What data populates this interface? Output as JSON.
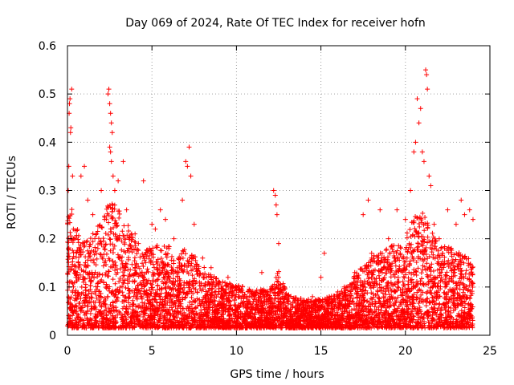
{
  "chart_data": {
    "type": "scatter",
    "title": "Day 069 of 2024, Rate Of TEC Index for receiver hofn",
    "xlabel": "GPS time / hours",
    "ylabel": "ROTI / TECUs",
    "xlim": [
      0,
      25
    ],
    "ylim": [
      0,
      0.6
    ],
    "x_ticks": [
      0,
      5,
      10,
      15,
      20,
      25
    ],
    "y_ticks": [
      0,
      0.1,
      0.2,
      0.3,
      0.4,
      0.5,
      0.6
    ],
    "x_tick_labels": [
      "0",
      "5",
      "10",
      "15",
      "20",
      "25"
    ],
    "y_tick_labels": [
      "0",
      "0.1",
      "0.2",
      "0.3",
      "0.4",
      "0.5",
      "0.6"
    ],
    "grid": true,
    "marker": "+",
    "color": "#ff0000",
    "series": [
      {
        "name": "hofn",
        "points": [
          [
            0.05,
            0.3
          ],
          [
            0.08,
            0.35
          ],
          [
            0.1,
            0.46
          ],
          [
            0.12,
            0.48
          ],
          [
            0.15,
            0.49
          ],
          [
            0.18,
            0.42
          ],
          [
            0.2,
            0.43
          ],
          [
            0.25,
            0.51
          ],
          [
            0.3,
            0.33
          ],
          [
            0.35,
            0.22
          ],
          [
            0.4,
            0.2
          ],
          [
            0.5,
            0.12
          ],
          [
            0.6,
            0.08
          ],
          [
            0.8,
            0.33
          ],
          [
            1.0,
            0.35
          ],
          [
            1.2,
            0.28
          ],
          [
            1.5,
            0.25
          ],
          [
            1.8,
            0.18
          ],
          [
            2.0,
            0.3
          ],
          [
            2.2,
            0.24
          ],
          [
            2.4,
            0.5
          ],
          [
            2.45,
            0.51
          ],
          [
            2.5,
            0.48
          ],
          [
            2.55,
            0.46
          ],
          [
            2.6,
            0.44
          ],
          [
            2.65,
            0.42
          ],
          [
            2.5,
            0.39
          ],
          [
            2.55,
            0.38
          ],
          [
            2.6,
            0.36
          ],
          [
            2.7,
            0.33
          ],
          [
            2.8,
            0.3
          ],
          [
            3.0,
            0.32
          ],
          [
            3.3,
            0.36
          ],
          [
            3.5,
            0.26
          ],
          [
            3.8,
            0.21
          ],
          [
            4.0,
            0.21
          ],
          [
            4.2,
            0.19
          ],
          [
            4.5,
            0.32
          ],
          [
            5.0,
            0.23
          ],
          [
            5.2,
            0.22
          ],
          [
            5.5,
            0.26
          ],
          [
            5.8,
            0.24
          ],
          [
            6.0,
            0.18
          ],
          [
            6.3,
            0.2
          ],
          [
            6.5,
            0.14
          ],
          [
            6.8,
            0.28
          ],
          [
            7.0,
            0.36
          ],
          [
            7.1,
            0.35
          ],
          [
            7.2,
            0.39
          ],
          [
            7.3,
            0.33
          ],
          [
            7.5,
            0.23
          ],
          [
            8.0,
            0.16
          ],
          [
            8.5,
            0.14
          ],
          [
            9.0,
            0.11
          ],
          [
            9.5,
            0.12
          ],
          [
            10.0,
            0.1
          ],
          [
            10.5,
            0.08
          ],
          [
            11.0,
            0.07
          ],
          [
            11.5,
            0.13
          ],
          [
            12.0,
            0.09
          ],
          [
            12.2,
            0.3
          ],
          [
            12.3,
            0.29
          ],
          [
            12.35,
            0.27
          ],
          [
            12.4,
            0.25
          ],
          [
            12.5,
            0.12
          ],
          [
            12.5,
            0.19
          ],
          [
            13.0,
            0.07
          ],
          [
            13.5,
            0.06
          ],
          [
            14.0,
            0.07
          ],
          [
            14.5,
            0.08
          ],
          [
            15.0,
            0.12
          ],
          [
            15.2,
            0.17
          ],
          [
            15.5,
            0.08
          ],
          [
            16.0,
            0.09
          ],
          [
            16.5,
            0.1
          ],
          [
            17.0,
            0.13
          ],
          [
            17.5,
            0.25
          ],
          [
            17.8,
            0.28
          ],
          [
            18.0,
            0.17
          ],
          [
            18.5,
            0.26
          ],
          [
            19.0,
            0.2
          ],
          [
            19.5,
            0.26
          ],
          [
            20.0,
            0.24
          ],
          [
            20.3,
            0.3
          ],
          [
            20.5,
            0.38
          ],
          [
            20.6,
            0.4
          ],
          [
            20.7,
            0.49
          ],
          [
            20.8,
            0.44
          ],
          [
            20.9,
            0.47
          ],
          [
            21.0,
            0.38
          ],
          [
            21.1,
            0.36
          ],
          [
            21.2,
            0.55
          ],
          [
            21.25,
            0.54
          ],
          [
            21.3,
            0.51
          ],
          [
            21.4,
            0.33
          ],
          [
            21.5,
            0.31
          ],
          [
            21.7,
            0.23
          ],
          [
            22.0,
            0.2
          ],
          [
            22.5,
            0.26
          ],
          [
            23.0,
            0.23
          ],
          [
            23.3,
            0.28
          ],
          [
            23.5,
            0.25
          ],
          [
            23.8,
            0.26
          ],
          [
            24.0,
            0.24
          ]
        ],
        "envelope_hours": [
          0,
          0.5,
          1,
          2,
          2.5,
          3,
          3.5,
          4,
          4.5,
          5,
          5.5,
          6,
          6.5,
          7,
          7.5,
          8,
          9,
          10,
          11,
          12,
          12.5,
          13,
          14,
          15,
          16,
          17,
          18,
          19,
          20,
          20.5,
          21,
          21.5,
          22,
          22.5,
          23,
          23.5,
          24
        ],
        "envelope_values": [
          0.28,
          0.22,
          0.18,
          0.22,
          0.28,
          0.25,
          0.22,
          0.18,
          0.16,
          0.17,
          0.18,
          0.17,
          0.15,
          0.17,
          0.15,
          0.13,
          0.1,
          0.09,
          0.08,
          0.08,
          0.12,
          0.07,
          0.06,
          0.06,
          0.07,
          0.11,
          0.15,
          0.17,
          0.19,
          0.23,
          0.24,
          0.21,
          0.18,
          0.17,
          0.16,
          0.15,
          0.14
        ]
      }
    ]
  }
}
